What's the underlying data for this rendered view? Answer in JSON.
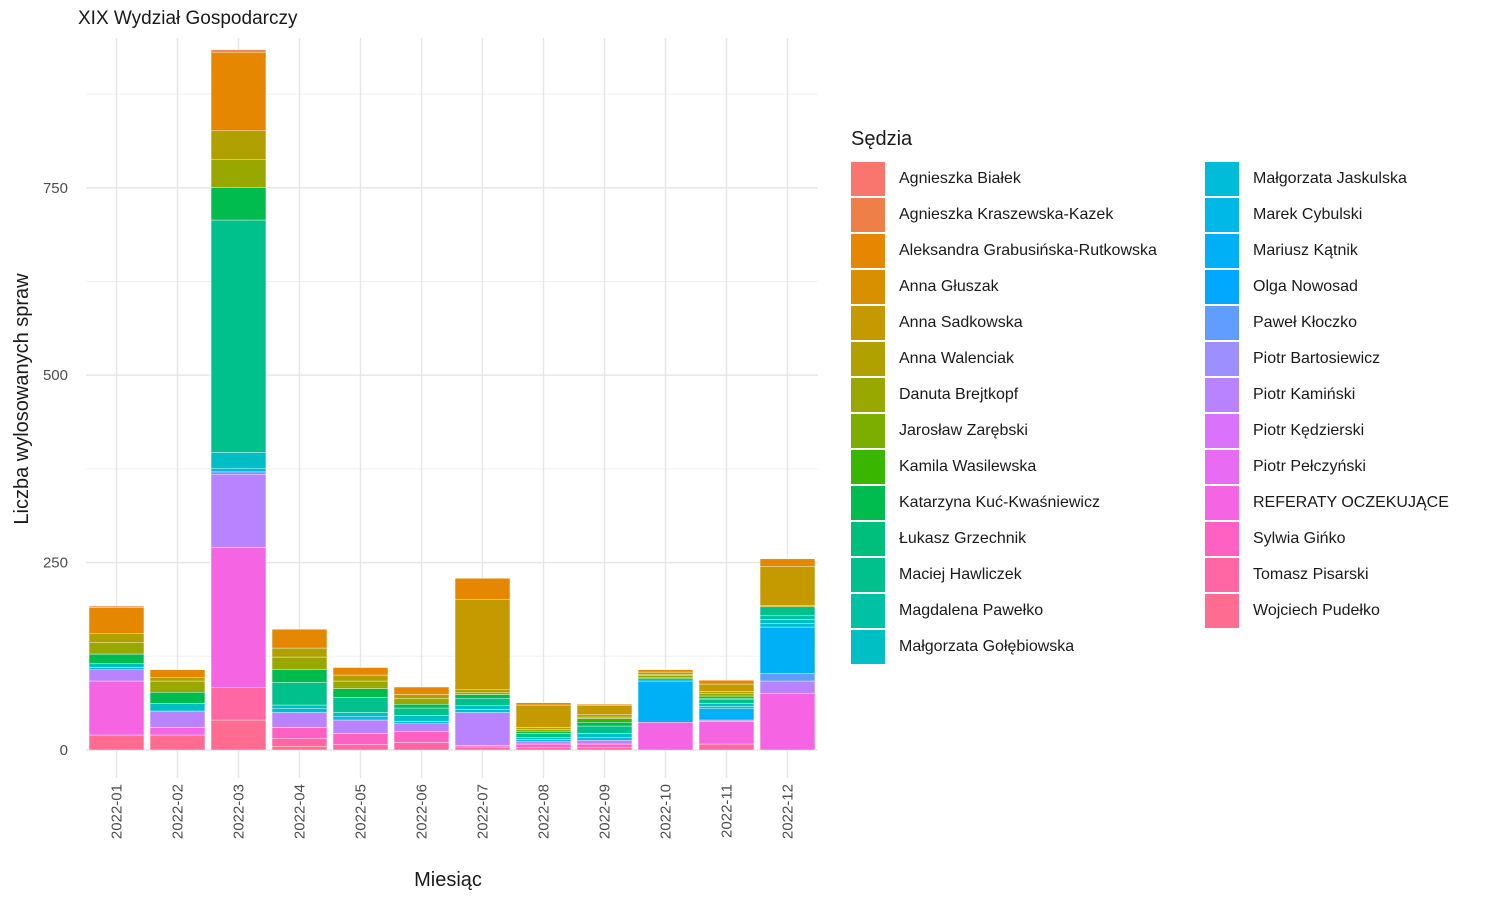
{
  "chart_data": {
    "type": "bar",
    "stacked": true,
    "title": "XIX Wydział Gospodarczy",
    "xlabel": "Miesiąc",
    "ylabel": "Liczba wylosowanych spraw",
    "ylim": [
      0,
      940
    ],
    "yticks": [
      0,
      250,
      500,
      750
    ],
    "grid": true,
    "legend_position": "right",
    "legend_title": "Sędzia",
    "categories": [
      "2022-01",
      "2022-02",
      "2022-03",
      "2022-04",
      "2022-05",
      "2022-06",
      "2022-07",
      "2022-08",
      "2022-09",
      "2022-10",
      "2022-11",
      "2022-12"
    ],
    "series": [
      {
        "name": "Agnieszka Białek",
        "color": "#F8766D",
        "values": [
          0,
          0,
          0,
          0,
          0,
          0,
          0,
          0,
          0,
          0,
          0,
          0
        ]
      },
      {
        "name": "Agnieszka Kraszewska-Kazek",
        "color": "#EF7F49",
        "values": [
          2,
          0,
          3,
          0,
          0,
          0,
          0,
          0,
          0,
          0,
          0,
          0
        ]
      },
      {
        "name": "Aleksandra Grabusińska-Rutkowska",
        "color": "#E58700",
        "values": [
          35,
          10,
          105,
          25,
          10,
          10,
          28,
          3,
          2,
          3,
          5,
          10
        ]
      },
      {
        "name": "Anna Głuszak",
        "color": "#D89000",
        "values": [
          0,
          0,
          0,
          0,
          0,
          0,
          0,
          0,
          0,
          0,
          0,
          0
        ]
      },
      {
        "name": "Anna Sadkowska",
        "color": "#C49A00",
        "values": [
          0,
          0,
          0,
          0,
          0,
          0,
          120,
          30,
          12,
          3,
          10,
          52
        ]
      },
      {
        "name": "Anna Walenciak",
        "color": "#B0A000",
        "values": [
          12,
          5,
          38,
          12,
          8,
          5,
          4,
          3,
          3,
          2,
          3,
          2
        ]
      },
      {
        "name": "Danuta Brejtkopf",
        "color": "#99A800",
        "values": [
          15,
          15,
          38,
          17,
          10,
          8,
          3,
          2,
          2,
          2,
          3,
          0
        ]
      },
      {
        "name": "Jarosław Zarębski",
        "color": "#7CAE00",
        "values": [
          0,
          0,
          0,
          0,
          0,
          0,
          0,
          0,
          0,
          0,
          0,
          0
        ]
      },
      {
        "name": "Kamila Wasilewska",
        "color": "#39B600",
        "values": [
          0,
          0,
          0,
          0,
          0,
          0,
          0,
          0,
          5,
          2,
          3,
          0
        ]
      },
      {
        "name": "Katarzyna Kuć-Kwaśniewicz",
        "color": "#00BB4E",
        "values": [
          13,
          15,
          43,
          17,
          12,
          5,
          5,
          3,
          5,
          0,
          2,
          0
        ]
      },
      {
        "name": "Łukasz Grzechnik",
        "color": "#00BF7D",
        "values": [
          0,
          0,
          0,
          0,
          0,
          0,
          0,
          0,
          0,
          0,
          0,
          0
        ]
      },
      {
        "name": "Maciej Hawliczek",
        "color": "#00C08B",
        "values": [
          0,
          0,
          310,
          30,
          20,
          10,
          10,
          5,
          10,
          0,
          5,
          12
        ]
      },
      {
        "name": "Magdalena Pawełko",
        "color": "#00C1A3",
        "values": [
          0,
          0,
          0,
          0,
          0,
          0,
          0,
          0,
          0,
          0,
          0,
          5
        ]
      },
      {
        "name": "Małgorzata Gołębiowska",
        "color": "#00BFC4",
        "values": [
          5,
          10,
          21,
          5,
          5,
          8,
          5,
          3,
          5,
          0,
          4,
          5
        ]
      },
      {
        "name": "Małgorzata Jaskulska",
        "color": "#00BCD8",
        "values": [
          3,
          0,
          5,
          5,
          5,
          3,
          4,
          3,
          4,
          3,
          3,
          5
        ]
      },
      {
        "name": "Marek Cybulski",
        "color": "#00B8E7",
        "values": [
          0,
          0,
          0,
          0,
          0,
          0,
          0,
          0,
          0,
          0,
          0,
          0
        ]
      },
      {
        "name": "Mariusz Kątnik",
        "color": "#00B0F6",
        "values": [
          0,
          0,
          0,
          0,
          0,
          0,
          0,
          0,
          0,
          55,
          15,
          62
        ]
      },
      {
        "name": "Olga Nowosad",
        "color": "#00A9FF",
        "values": [
          0,
          0,
          0,
          0,
          0,
          0,
          0,
          0,
          0,
          0,
          0,
          0
        ]
      },
      {
        "name": "Paweł Kłoczko",
        "color": "#619CFF",
        "values": [
          0,
          0,
          3,
          0,
          0,
          0,
          0,
          0,
          0,
          0,
          0,
          10
        ]
      },
      {
        "name": "Piotr Bartosiewicz",
        "color": "#9E8FFF",
        "values": [
          0,
          0,
          0,
          0,
          0,
          0,
          0,
          0,
          0,
          0,
          0,
          0
        ]
      },
      {
        "name": "Piotr Kamiński",
        "color": "#B983FF",
        "values": [
          15,
          22,
          98,
          20,
          18,
          10,
          44,
          3,
          5,
          0,
          2,
          17
        ]
      },
      {
        "name": "Piotr Kędzierski",
        "color": "#DB72FB",
        "values": [
          0,
          0,
          0,
          0,
          0,
          0,
          0,
          0,
          0,
          0,
          0,
          0
        ]
      },
      {
        "name": "Piotr Pełczyński",
        "color": "#E76BF3",
        "values": [
          0,
          0,
          0,
          0,
          0,
          0,
          0,
          0,
          0,
          0,
          0,
          0
        ]
      },
      {
        "name": "REFERATY OCZEKUJĄCE",
        "color": "#F564E3",
        "values": [
          72,
          10,
          187,
          0,
          0,
          0,
          0,
          0,
          0,
          37,
          30,
          75
        ]
      },
      {
        "name": "Sylwia Gińko",
        "color": "#FF61C3",
        "values": [
          0,
          0,
          0,
          15,
          15,
          15,
          2,
          5,
          5,
          0,
          0,
          0
        ]
      },
      {
        "name": "Tomasz Pisarski",
        "color": "#FF67A4",
        "values": [
          0,
          0,
          43,
          10,
          7,
          10,
          4,
          3,
          3,
          0,
          8,
          0
        ]
      },
      {
        "name": "Wojciech Pudełko",
        "color": "#FF6C91",
        "values": [
          20,
          20,
          40,
          5,
          0,
          0,
          0,
          0,
          0,
          0,
          0,
          0
        ]
      }
    ]
  }
}
